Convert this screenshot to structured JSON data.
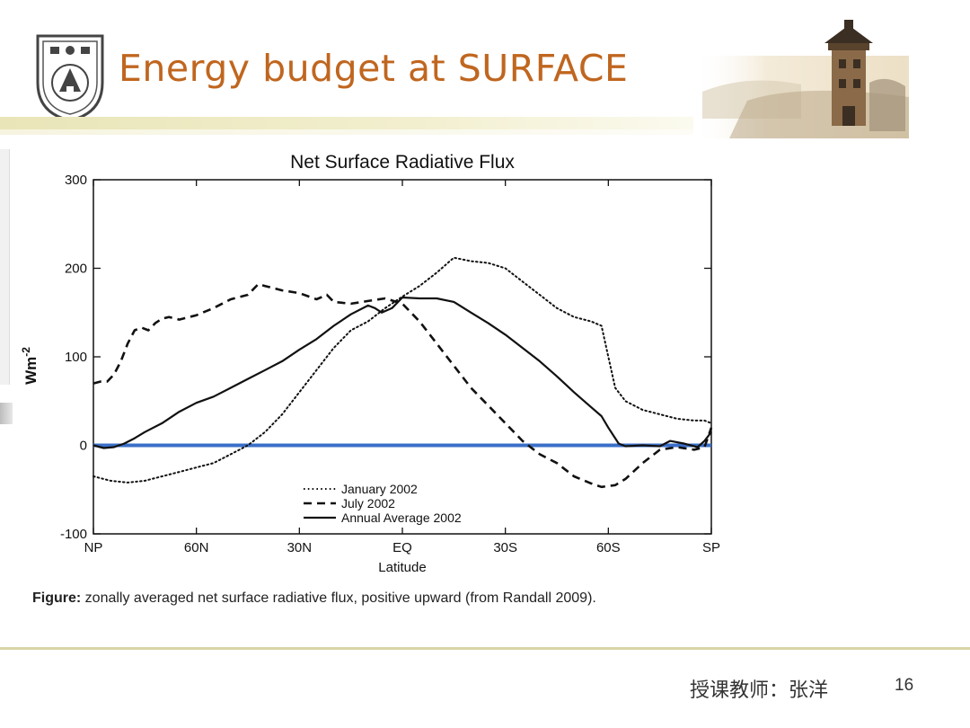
{
  "slide": {
    "title": "Energy budget at SURFACE",
    "caption_bold": "Figure:",
    "caption_rest": " zonally averaged net surface radiative flux, positive upward (from Randall 2009).",
    "teacher": "授课教师：张洋",
    "page_number": "16"
  },
  "colors": {
    "title": "#c0661f",
    "zero_line": "#3a6fc8",
    "header_bar": "#e9e5b8"
  },
  "icons": [
    "university-seal-logo",
    "tower-photo"
  ],
  "chart_data": {
    "type": "line",
    "title": "Net Surface Radiative Flux",
    "xlabel": "Latitude",
    "ylabel": "Wm",
    "ylabel_sup": "-2",
    "xlim": [
      90,
      -90
    ],
    "ylim": [
      -100,
      300
    ],
    "x_ticks": [
      {
        "value": 90,
        "label": "NP"
      },
      {
        "value": 60,
        "label": "60N"
      },
      {
        "value": 30,
        "label": "30N"
      },
      {
        "value": 0,
        "label": "EQ"
      },
      {
        "value": -30,
        "label": "30S"
      },
      {
        "value": -60,
        "label": "60S"
      },
      {
        "value": -90,
        "label": "SP"
      }
    ],
    "y_ticks": [
      {
        "value": 300,
        "label": "300"
      },
      {
        "value": 200,
        "label": "200"
      },
      {
        "value": 100,
        "label": "100"
      },
      {
        "value": 0,
        "label": "0"
      },
      {
        "value": -100,
        "label": "-100"
      }
    ],
    "grid": false,
    "legend_position": "bottom-center",
    "zero_line": {
      "value": 0
    },
    "series": [
      {
        "name": "January 2002",
        "style": "dotted",
        "points": [
          [
            90,
            -35
          ],
          [
            85,
            -40
          ],
          [
            80,
            -42
          ],
          [
            75,
            -40
          ],
          [
            70,
            -35
          ],
          [
            65,
            -30
          ],
          [
            60,
            -25
          ],
          [
            55,
            -20
          ],
          [
            50,
            -10
          ],
          [
            45,
            0
          ],
          [
            40,
            15
          ],
          [
            35,
            35
          ],
          [
            30,
            60
          ],
          [
            25,
            85
          ],
          [
            20,
            110
          ],
          [
            15,
            130
          ],
          [
            10,
            140
          ],
          [
            5,
            155
          ],
          [
            0,
            168
          ],
          [
            -5,
            180
          ],
          [
            -10,
            195
          ],
          [
            -15,
            212
          ],
          [
            -20,
            208
          ],
          [
            -25,
            206
          ],
          [
            -30,
            200
          ],
          [
            -35,
            185
          ],
          [
            -40,
            170
          ],
          [
            -45,
            155
          ],
          [
            -50,
            145
          ],
          [
            -55,
            140
          ],
          [
            -58,
            135
          ],
          [
            -60,
            100
          ],
          [
            -62,
            65
          ],
          [
            -65,
            50
          ],
          [
            -70,
            40
          ],
          [
            -75,
            35
          ],
          [
            -80,
            30
          ],
          [
            -85,
            28
          ],
          [
            -88,
            28
          ],
          [
            -90,
            25
          ]
        ]
      },
      {
        "name": "July 2002",
        "style": "dashed",
        "points": [
          [
            90,
            70
          ],
          [
            88,
            72
          ],
          [
            86,
            72
          ],
          [
            84,
            80
          ],
          [
            82,
            95
          ],
          [
            80,
            115
          ],
          [
            78,
            130
          ],
          [
            76,
            133
          ],
          [
            74,
            130
          ],
          [
            72,
            138
          ],
          [
            70,
            143
          ],
          [
            68,
            145
          ],
          [
            65,
            142
          ],
          [
            62,
            145
          ],
          [
            60,
            147
          ],
          [
            55,
            155
          ],
          [
            50,
            165
          ],
          [
            45,
            170
          ],
          [
            42,
            182
          ],
          [
            40,
            180
          ],
          [
            35,
            175
          ],
          [
            30,
            172
          ],
          [
            25,
            165
          ],
          [
            22,
            170
          ],
          [
            20,
            162
          ],
          [
            15,
            160
          ],
          [
            10,
            163
          ],
          [
            5,
            166
          ],
          [
            0,
            160
          ],
          [
            -5,
            140
          ],
          [
            -10,
            115
          ],
          [
            -15,
            90
          ],
          [
            -20,
            65
          ],
          [
            -25,
            45
          ],
          [
            -30,
            25
          ],
          [
            -35,
            5
          ],
          [
            -40,
            -10
          ],
          [
            -45,
            -20
          ],
          [
            -50,
            -35
          ],
          [
            -55,
            -43
          ],
          [
            -58,
            -47
          ],
          [
            -62,
            -45
          ],
          [
            -65,
            -38
          ],
          [
            -70,
            -20
          ],
          [
            -75,
            -5
          ],
          [
            -80,
            -2
          ],
          [
            -85,
            -5
          ],
          [
            -88,
            -2
          ],
          [
            -90,
            20
          ]
        ]
      },
      {
        "name": "Annual Average 2002",
        "style": "solid",
        "points": [
          [
            90,
            0
          ],
          [
            87,
            -3
          ],
          [
            84,
            -2
          ],
          [
            81,
            2
          ],
          [
            78,
            8
          ],
          [
            75,
            15
          ],
          [
            70,
            25
          ],
          [
            65,
            38
          ],
          [
            60,
            48
          ],
          [
            55,
            55
          ],
          [
            50,
            65
          ],
          [
            45,
            75
          ],
          [
            40,
            85
          ],
          [
            35,
            95
          ],
          [
            30,
            108
          ],
          [
            25,
            120
          ],
          [
            20,
            135
          ],
          [
            15,
            148
          ],
          [
            10,
            158
          ],
          [
            8,
            155
          ],
          [
            6,
            150
          ],
          [
            3,
            155
          ],
          [
            0,
            167
          ],
          [
            -5,
            166
          ],
          [
            -10,
            166
          ],
          [
            -15,
            162
          ],
          [
            -20,
            150
          ],
          [
            -25,
            138
          ],
          [
            -30,
            125
          ],
          [
            -35,
            110
          ],
          [
            -40,
            95
          ],
          [
            -45,
            78
          ],
          [
            -50,
            60
          ],
          [
            -55,
            43
          ],
          [
            -58,
            33
          ],
          [
            -60,
            20
          ],
          [
            -62,
            8
          ],
          [
            -63,
            2
          ],
          [
            -65,
            -1
          ],
          [
            -70,
            0
          ],
          [
            -75,
            -1
          ],
          [
            -78,
            5
          ],
          [
            -82,
            2
          ],
          [
            -86,
            -2
          ],
          [
            -88,
            5
          ],
          [
            -90,
            15
          ]
        ]
      }
    ]
  }
}
